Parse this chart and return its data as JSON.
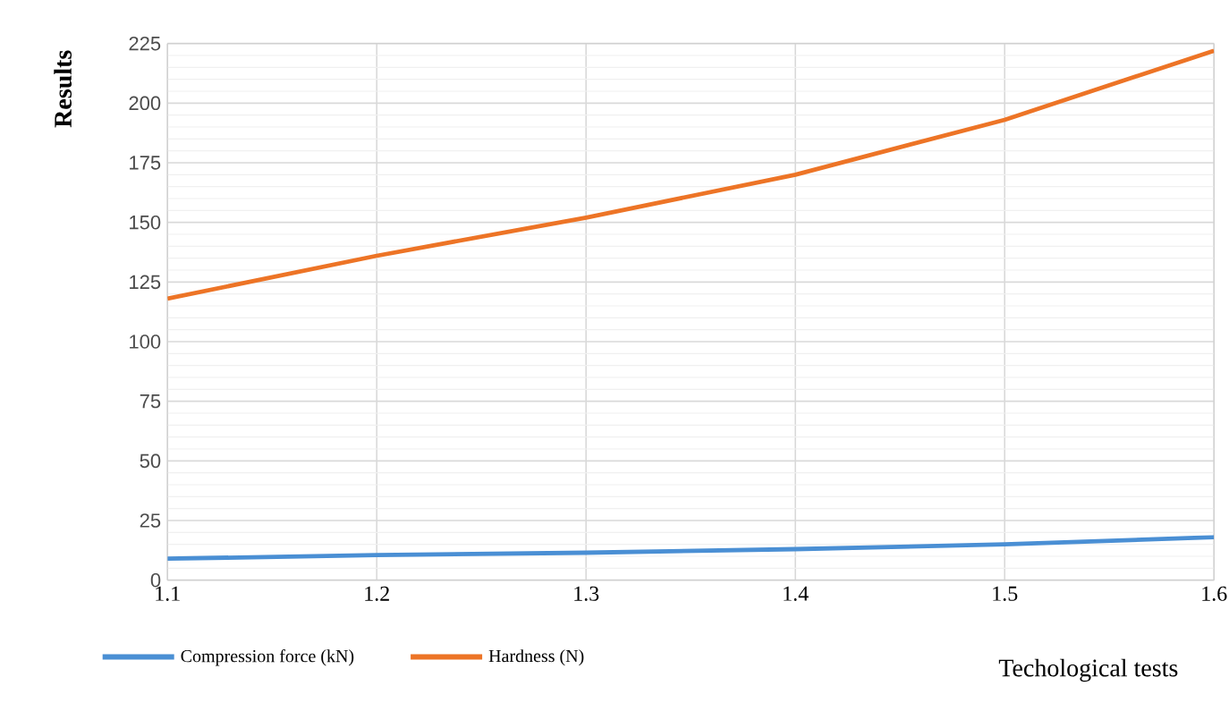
{
  "chart_data": {
    "type": "line",
    "xlabel": "Techological tests",
    "ylabel": "Results",
    "x": [
      1.1,
      1.2,
      1.3,
      1.4,
      1.5,
      1.6
    ],
    "series": [
      {
        "name": "Compression force (kN)",
        "color": "#4a8fd4",
        "values": [
          9,
          10.5,
          11.5,
          13,
          15,
          18
        ]
      },
      {
        "name": "Hardness (N)",
        "color": "#ed7426",
        "values": [
          118,
          136,
          152,
          170,
          193,
          222
        ]
      }
    ],
    "xlim": [
      1.1,
      1.6
    ],
    "xticks": [
      1.1,
      1.2,
      1.3,
      1.4,
      1.5,
      1.6
    ],
    "ylim": [
      0,
      225
    ],
    "yticks": [
      0,
      25,
      50,
      75,
      100,
      125,
      150,
      175,
      200,
      225
    ],
    "grid": true,
    "legend": "bottom",
    "marker": "none",
    "line_style": "solid"
  }
}
